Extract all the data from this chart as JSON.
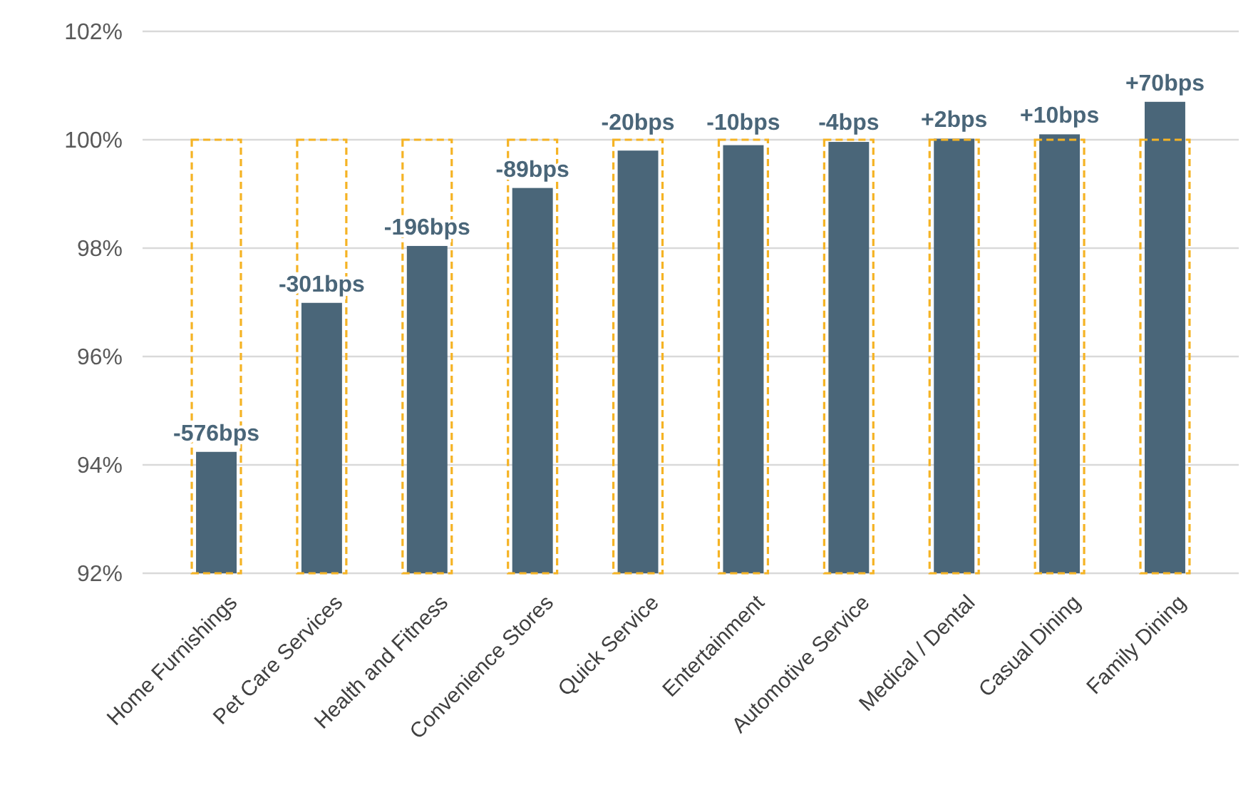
{
  "chart_data": {
    "type": "bar",
    "categories": [
      "Home Furnishings",
      "Pet Care Services",
      "Health and Fitness",
      "Convenience Stores",
      "Quick Service",
      "Entertainment",
      "Automotive Service",
      "Medical / Dental",
      "Casual Dining",
      "Family Dining"
    ],
    "series": [
      {
        "color": "#f5b324",
        "line_style": "dashed",
        "values": [
          100,
          100,
          100,
          100,
          100,
          100,
          100,
          100,
          100,
          100
        ]
      },
      {
        "color": "#4a6679",
        "values": [
          94.24,
          96.99,
          98.04,
          99.11,
          99.8,
          99.9,
          99.96,
          100.02,
          100.1,
          100.7
        ]
      }
    ],
    "annotations": [
      {
        "text": "-576bps",
        "x": "Home Furnishings",
        "y": 94.24
      },
      {
        "text": "-301bps",
        "x": "Pet Care Services",
        "y": 96.99
      },
      {
        "text": "-196bps",
        "x": "Health and Fitness",
        "y": 98.04
      },
      {
        "text": "-89bps",
        "x": "Convenience Stores",
        "y": 99.11
      },
      {
        "text": "-20bps",
        "x": "Quick Service",
        "y": 99.8
      },
      {
        "text": "-10bps",
        "x": "Entertainment",
        "y": 99.9
      },
      {
        "text": "-4bps",
        "x": "Automotive Service",
        "y": 99.96
      },
      {
        "text": "+2bps",
        "x": "Medical / Dental",
        "y": 100.02
      },
      {
        "text": "+10bps",
        "x": "Casual Dining",
        "y": 100.1
      },
      {
        "text": "+70bps",
        "x": "Family Dining",
        "y": 100.7
      }
    ],
    "ylim": [
      92,
      102
    ],
    "yticks": [
      {
        "value": 92,
        "label": "92%"
      },
      {
        "value": 94,
        "label": "94%"
      },
      {
        "value": 96,
        "label": "96%"
      },
      {
        "value": 98,
        "label": "98%"
      },
      {
        "value": 100,
        "label": "100%"
      },
      {
        "value": 102,
        "label": "102%"
      }
    ],
    "grid": "y"
  }
}
